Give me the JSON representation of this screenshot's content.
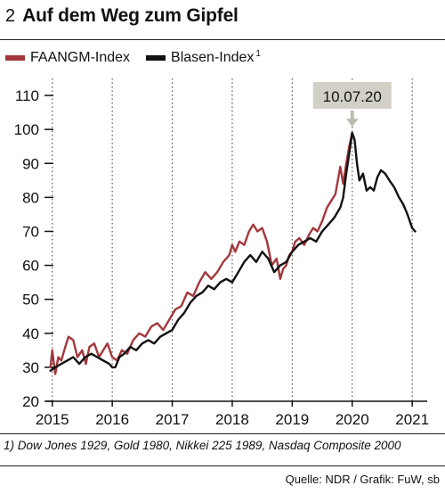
{
  "figure": {
    "number": "2",
    "title": "Auf dem Weg zum Gipfel"
  },
  "legend": [
    {
      "label": "FAANGM-Index",
      "sup": "",
      "color": "#a3383c"
    },
    {
      "label": "Blasen-Index",
      "sup": "1",
      "color": "#111111"
    }
  ],
  "footnote": "1) Dow Jones 1929, Gold 1980, Nikkei 225 1989, Nasdaq Composite 2000",
  "source": "Quelle: NDR / Grafik: FuW, sb",
  "chart_data": {
    "type": "line",
    "x_unit": "year",
    "xlim": [
      2014.9,
      2021.25
    ],
    "ylim": [
      20,
      115
    ],
    "yticks": [
      20,
      30,
      40,
      50,
      60,
      70,
      80,
      90,
      100,
      110
    ],
    "xticks": [
      "2015",
      "2016",
      "2017",
      "2018",
      "2019",
      "2020",
      "2021"
    ],
    "grid": "vertical-dotted",
    "legend_position": "top-left",
    "annotation": {
      "label": "10.07.20",
      "x": 2020.0,
      "y": 100
    },
    "series": [
      {
        "name": "FAANGM-Index",
        "color": "#a3383c",
        "x": [
          2014.97,
          2015.0,
          2015.05,
          2015.1,
          2015.15,
          2015.2,
          2015.27,
          2015.35,
          2015.42,
          2015.5,
          2015.56,
          2015.62,
          2015.7,
          2015.78,
          2015.85,
          2015.92,
          2016.0,
          2016.08,
          2016.16,
          2016.25,
          2016.35,
          2016.45,
          2016.55,
          2016.65,
          2016.75,
          2016.85,
          2016.95,
          2017.05,
          2017.15,
          2017.25,
          2017.35,
          2017.45,
          2017.55,
          2017.65,
          2017.75,
          2017.85,
          2017.95,
          2018.0,
          2018.05,
          2018.12,
          2018.2,
          2018.28,
          2018.35,
          2018.42,
          2018.5,
          2018.58,
          2018.66,
          2018.74,
          2018.8,
          2018.85,
          2018.9,
          2018.95,
          2019.0,
          2019.05,
          2019.12,
          2019.2,
          2019.28,
          2019.35,
          2019.42,
          2019.5,
          2019.58,
          2019.65,
          2019.72,
          2019.8,
          2019.85,
          2019.9,
          2019.95,
          2020.0
        ],
        "values": [
          30,
          35,
          28,
          33,
          32,
          35,
          39,
          38,
          33,
          35,
          31,
          36,
          37,
          33,
          35,
          37,
          33,
          32,
          35,
          34,
          38,
          40,
          39,
          42,
          43,
          41,
          44,
          47,
          48,
          52,
          51,
          55,
          58,
          56,
          58,
          61,
          63,
          66,
          64,
          67,
          66,
          70,
          72,
          70,
          71,
          67,
          60,
          62,
          56,
          59,
          60,
          63,
          64,
          67,
          68,
          66,
          69,
          71,
          70,
          73,
          77,
          79,
          81,
          89,
          84,
          90,
          95,
          99
        ]
      },
      {
        "name": "Blasen-Index",
        "color": "#111111",
        "x": [
          2014.97,
          2015.05,
          2015.15,
          2015.25,
          2015.35,
          2015.45,
          2015.55,
          2015.65,
          2015.75,
          2015.85,
          2015.95,
          2016.0,
          2016.05,
          2016.12,
          2016.2,
          2016.3,
          2016.4,
          2016.5,
          2016.6,
          2016.7,
          2016.8,
          2016.9,
          2017.0,
          2017.1,
          2017.2,
          2017.3,
          2017.4,
          2017.5,
          2017.6,
          2017.7,
          2017.8,
          2017.9,
          2018.0,
          2018.1,
          2018.2,
          2018.3,
          2018.4,
          2018.5,
          2018.6,
          2018.7,
          2018.8,
          2018.9,
          2019.0,
          2019.1,
          2019.2,
          2019.3,
          2019.4,
          2019.5,
          2019.6,
          2019.7,
          2019.8,
          2019.85,
          2019.9,
          2019.95,
          2020.0,
          2020.04,
          2020.08,
          2020.12,
          2020.18,
          2020.24,
          2020.3,
          2020.36,
          2020.42,
          2020.48,
          2020.55,
          2020.62,
          2020.7,
          2020.78,
          2020.85,
          2020.92,
          2021.0,
          2021.05
        ],
        "values": [
          29,
          30,
          31,
          32,
          33,
          31,
          33,
          34,
          33,
          32,
          31,
          30,
          30,
          33,
          34,
          36,
          35,
          37,
          38,
          37,
          39,
          40,
          41,
          44,
          46,
          49,
          51,
          52,
          54,
          53,
          55,
          56,
          55,
          58,
          61,
          63,
          61,
          64,
          62,
          58,
          60,
          61,
          64,
          66,
          67,
          68,
          67,
          70,
          72,
          74,
          77,
          80,
          87,
          93,
          99,
          97,
          90,
          85,
          87,
          82,
          83,
          82,
          86,
          88,
          87,
          85,
          83,
          80,
          78,
          75,
          71,
          70
        ]
      }
    ]
  }
}
